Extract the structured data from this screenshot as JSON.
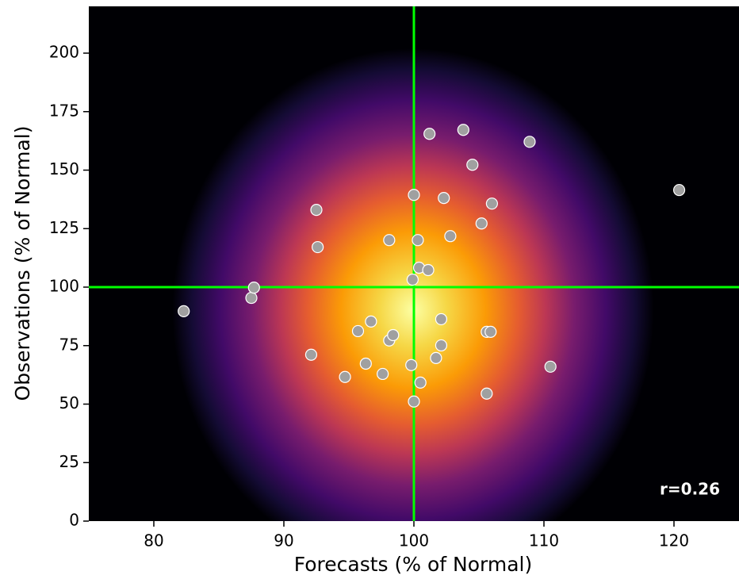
{
  "chart_data": {
    "type": "scatter",
    "x_label": "Forecasts (% of Normal)",
    "y_label": "Observations (% of Normal)",
    "annotation": "r=0.26",
    "xlim": [
      75,
      125
    ],
    "ylim": [
      0,
      220
    ],
    "xticks": [
      80,
      90,
      100,
      110,
      120
    ],
    "yticks": [
      0,
      25,
      50,
      75,
      100,
      125,
      150,
      175,
      200
    ],
    "reference_lines": {
      "x": 100,
      "y": 100,
      "color": "#00ff00"
    },
    "series": [
      {
        "color": "#a0a0a0",
        "x": [
          82.3,
          87.5,
          87.7,
          92.5,
          92.6,
          92.1,
          94.7,
          96.3,
          97.6,
          95.7,
          96.7,
          98.1,
          98.4,
          98.1,
          100.0,
          99.9,
          100.3,
          100.4,
          101.1,
          101.2,
          102.3,
          102.8,
          103.8,
          104.5,
          105.2,
          106.0,
          108.9,
          120.4,
          102.1,
          102.1,
          101.7,
          99.8,
          100.5,
          100.0,
          105.6,
          105.9,
          105.6,
          110.5
        ],
        "values": [
          89.7,
          95.4,
          99.8,
          133.0,
          117.1,
          71.1,
          61.6,
          67.3,
          62.9,
          81.2,
          85.3,
          77.2,
          79.5,
          120.1,
          139.4,
          103.2,
          120.1,
          108.3,
          107.3,
          165.5,
          138.1,
          121.8,
          167.2,
          152.3,
          127.2,
          135.7,
          162.1,
          141.5,
          86.3,
          75.1,
          69.7,
          66.7,
          59.2,
          51.1,
          80.9,
          80.9,
          54.5,
          66.0
        ]
      }
    ]
  }
}
